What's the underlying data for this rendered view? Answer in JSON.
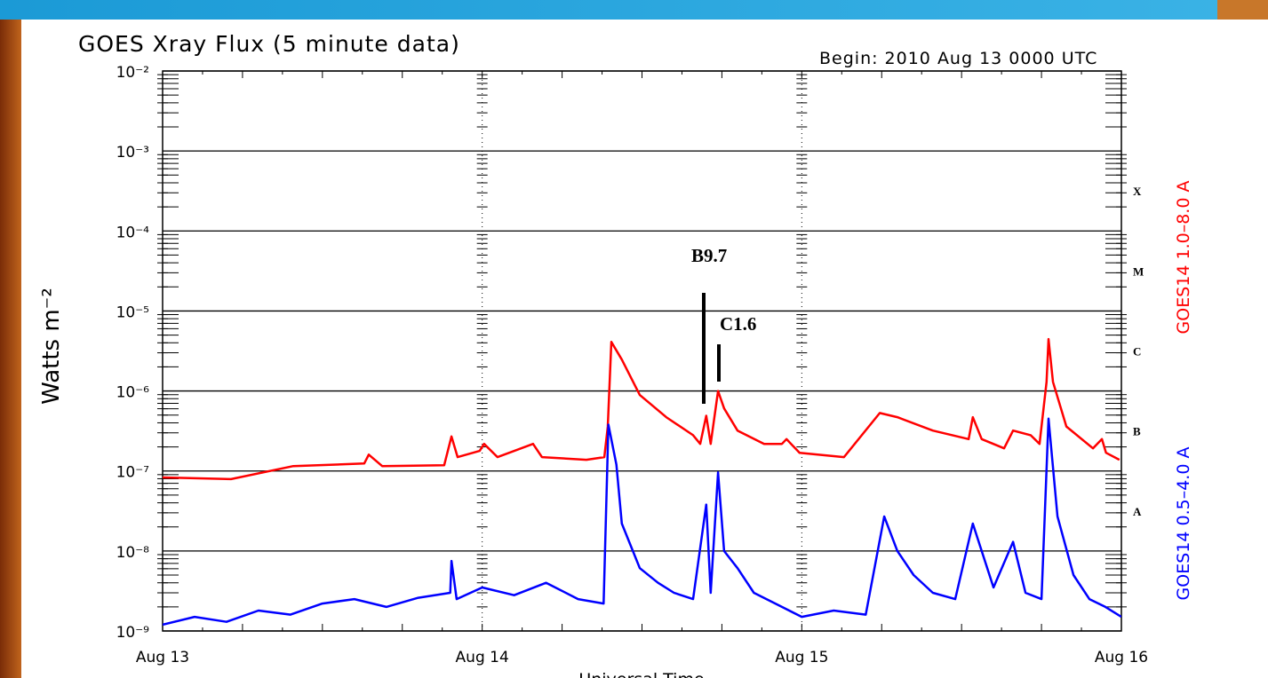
{
  "chart_data": {
    "type": "line",
    "title": "GOES Xray Flux (5 minute data)",
    "subtitle": "Begin:  2010 Aug 13 0000 UTC",
    "ylabel": "Watts m⁻²",
    "xlabel": "Universal Time",
    "log_y": true,
    "grid": true,
    "ylim": [
      1e-09,
      0.01
    ],
    "yticks": [
      {
        "value": 0.01,
        "label": "10⁻²"
      },
      {
        "value": 0.001,
        "label": "10⁻³"
      },
      {
        "value": 0.0001,
        "label": "10⁻⁴"
      },
      {
        "value": 1e-05,
        "label": "10⁻⁵"
      },
      {
        "value": 1e-06,
        "label": "10⁻⁶"
      },
      {
        "value": 1e-07,
        "label": "10⁻⁷"
      },
      {
        "value": 1e-08,
        "label": "10⁻⁸"
      },
      {
        "value": 1e-09,
        "label": "10⁻⁹"
      }
    ],
    "xlim": [
      0,
      3
    ],
    "xticks": [
      {
        "value": 0,
        "label": "Aug 13"
      },
      {
        "value": 1,
        "label": "Aug 14"
      },
      {
        "value": 2,
        "label": "Aug 15"
      },
      {
        "value": 3,
        "label": "Aug 16"
      }
    ],
    "flare_classes": [
      "X",
      "M",
      "C",
      "B",
      "A"
    ],
    "annotations": [
      "B9.7",
      "C1.6"
    ],
    "series": [
      {
        "name": "GOES14 1.0–8.0 A",
        "color": "#ff0000",
        "x": [
          0,
          0.214,
          0.409,
          0.631,
          0.645,
          0.687,
          0.881,
          0.904,
          0.923,
          0.992,
          1.006,
          1.048,
          1.159,
          1.187,
          1.326,
          1.382,
          1.393,
          1.404,
          1.437,
          1.493,
          1.576,
          1.66,
          1.682,
          1.701,
          1.715,
          1.738,
          1.757,
          1.799,
          1.882,
          1.938,
          1.952,
          1.993,
          2.132,
          2.244,
          2.299,
          2.41,
          2.522,
          2.535,
          2.563,
          2.633,
          2.661,
          2.716,
          2.744,
          2.766,
          2.772,
          2.786,
          2.828,
          2.911,
          2.939,
          2.952,
          2.994
        ],
        "values": [
          8.3e-08,
          7.9e-08,
          1.15e-07,
          1.24e-07,
          1.6e-07,
          1.15e-07,
          1.18e-07,
          2.7e-07,
          1.49e-07,
          1.78e-07,
          2.18e-07,
          1.49e-07,
          2.18e-07,
          1.49e-07,
          1.38e-07,
          1.49e-07,
          3.6e-07,
          4.1e-06,
          2.47e-06,
          8.9e-07,
          4.7e-07,
          2.8e-07,
          2.18e-07,
          4.9e-07,
          2.18e-07,
          1e-06,
          6.05e-07,
          3.2e-07,
          2.18e-07,
          2.18e-07,
          2.5e-07,
          1.69e-07,
          1.49e-07,
          5.3e-07,
          4.7e-07,
          3.2e-07,
          2.5e-07,
          4.7e-07,
          2.5e-07,
          1.92e-07,
          3.2e-07,
          2.8e-07,
          2.18e-07,
          1.3e-06,
          4.45e-06,
          1.3e-06,
          3.6e-07,
          1.92e-07,
          2.5e-07,
          1.69e-07,
          1.38e-07
        ]
      },
      {
        "name": "GOES14 0.5–4.0 A",
        "color": "#0000ff",
        "x": [
          0,
          0.1,
          0.2,
          0.3,
          0.4,
          0.5,
          0.6,
          0.7,
          0.8,
          0.9,
          0.904,
          0.92,
          1.0,
          1.1,
          1.2,
          1.3,
          1.38,
          1.395,
          1.42,
          1.437,
          1.493,
          1.55,
          1.6,
          1.66,
          1.701,
          1.715,
          1.738,
          1.757,
          1.799,
          1.85,
          1.938,
          2.0,
          2.1,
          2.2,
          2.258,
          2.299,
          2.35,
          2.41,
          2.48,
          2.535,
          2.6,
          2.661,
          2.7,
          2.75,
          2.772,
          2.8,
          2.85,
          2.9,
          2.95,
          3.0
        ],
        "values": [
          1.2e-09,
          1.5e-09,
          1.3e-09,
          1.8e-09,
          1.6e-09,
          2.2e-09,
          2.5e-09,
          2e-09,
          2.6e-09,
          3e-09,
          7.5e-09,
          2.5e-09,
          3.5e-09,
          2.8e-09,
          4e-09,
          2.5e-09,
          2.2e-09,
          3.8e-07,
          1.2e-07,
          2.2e-08,
          6.1e-09,
          4e-09,
          3e-09,
          2.5e-09,
          3.8e-08,
          3e-09,
          9.6e-08,
          1e-08,
          6.1e-09,
          3e-09,
          2e-09,
          1.5e-09,
          1.8e-09,
          1.6e-09,
          2.7e-08,
          1e-08,
          5e-09,
          3e-09,
          2.5e-09,
          2.2e-08,
          3.5e-09,
          1.3e-08,
          3e-09,
          2.5e-09,
          4.5e-07,
          2.7e-08,
          5e-09,
          2.5e-09,
          2e-09,
          1.5e-09
        ]
      }
    ]
  }
}
